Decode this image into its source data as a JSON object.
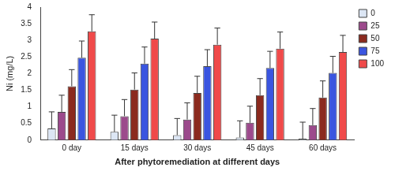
{
  "chart_data": {
    "type": "bar",
    "x_label": "After phytoremediation at different days",
    "y_label": "Ni (mg/L)",
    "categories": [
      "0 day",
      "15 days",
      "30 days",
      "45 days",
      "60 days"
    ],
    "series": [
      {
        "name": "0",
        "color": "#dce6f4",
        "values": [
          0.35,
          0.25,
          0.15,
          0.08,
          0.04
        ],
        "errors": [
          0.5,
          0.5,
          0.5,
          0.5,
          0.5
        ]
      },
      {
        "name": "25",
        "color": "#9c4a8c",
        "values": [
          0.85,
          0.72,
          0.62,
          0.52,
          0.45
        ],
        "errors": [
          0.5,
          0.5,
          0.5,
          0.5,
          0.5
        ]
      },
      {
        "name": "50",
        "color": "#8b2a1e",
        "values": [
          1.62,
          1.52,
          1.42,
          1.35,
          1.28
        ],
        "errors": [
          0.5,
          0.5,
          0.5,
          0.5,
          0.5
        ]
      },
      {
        "name": "75",
        "color": "#3a55e0",
        "values": [
          2.48,
          2.3,
          2.22,
          2.17,
          2.02
        ],
        "errors": [
          0.5,
          0.5,
          0.5,
          0.5,
          0.5
        ]
      },
      {
        "name": "100",
        "color": "#f04a4a",
        "values": [
          3.27,
          3.05,
          2.87,
          2.75,
          2.65
        ],
        "errors": [
          0.5,
          0.5,
          0.5,
          0.5,
          0.5
        ]
      }
    ],
    "ylim": [
      0,
      4
    ],
    "yticks": [
      0,
      0.5,
      1,
      1.5,
      2,
      2.5,
      3,
      3.5,
      4
    ],
    "grid": false,
    "legend": "right"
  }
}
